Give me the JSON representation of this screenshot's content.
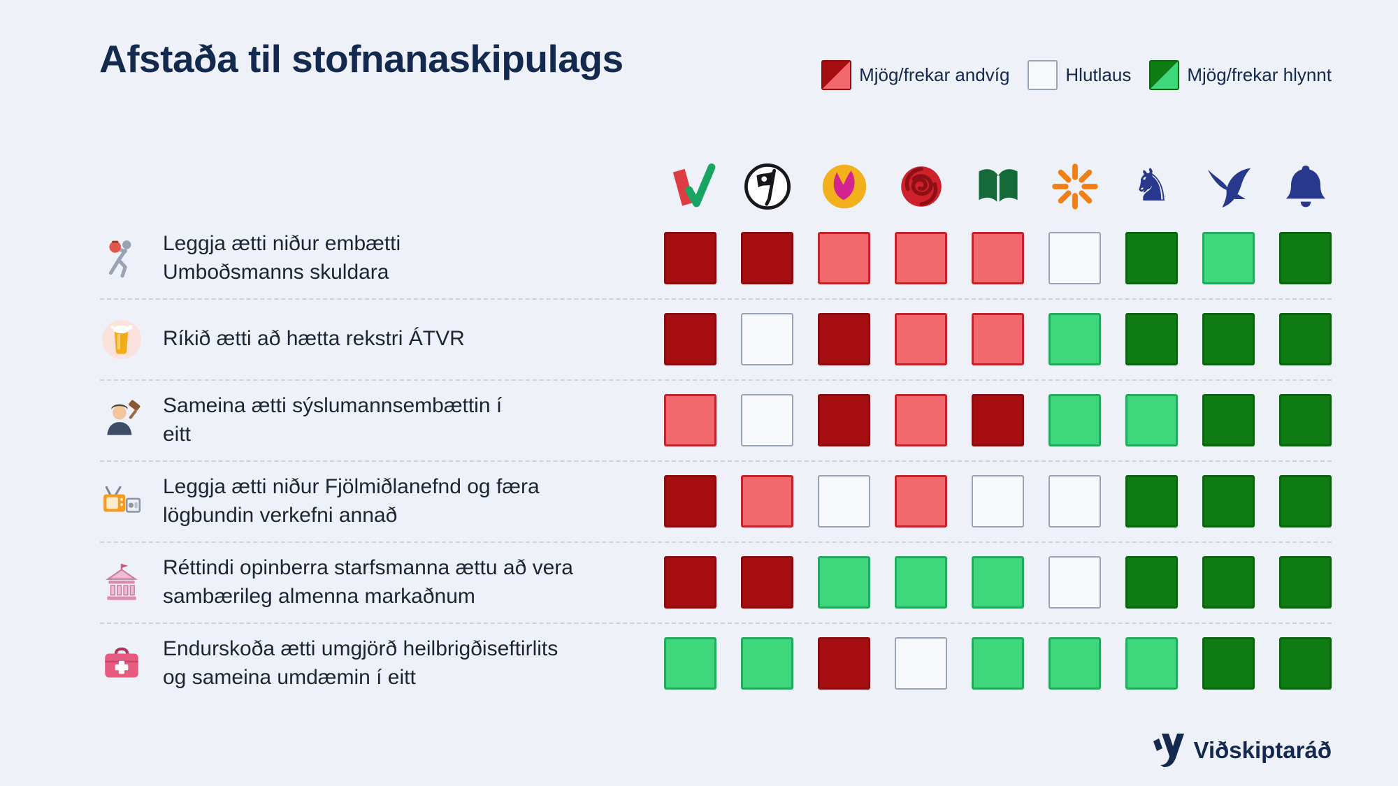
{
  "title": "Afstaða til stofnanaskipulags",
  "legend": {
    "items": [
      {
        "label": "Mjög/frekar andvíg",
        "swatch": "red",
        "name": "against-swatch"
      },
      {
        "label": "Hlutlaus",
        "swatch": "neutral",
        "name": "neutral-swatch"
      },
      {
        "label": "Mjög/frekar hlynnt",
        "swatch": "green",
        "name": "for-swatch"
      }
    ]
  },
  "footer": {
    "brand": "Viðskiptaráð"
  },
  "colors": {
    "bg": "#eef1f8",
    "navy": "#14294e",
    "text": "#1b2534",
    "logo-navy": "#28388c",
    "dashed": "#ccd3e0",
    "strongly-against": "#a60e12",
    "strongly-against-border": "#8c0b0e",
    "somewhat-against": "#f1686d",
    "somewhat-against-border": "#c2242b",
    "neutral-fill": "#f6f8fc",
    "neutral-border": "#97a3b6",
    "somewhat-for": "#3fd77c",
    "somewhat-for-border": "#22aa5e",
    "strongly-for": "#0e7b13",
    "strongly-for-border": "#0a6410"
  },
  "chart_data": {
    "type": "heatmap",
    "title": "Afstaða til stofnanaskipulags",
    "legend": [
      "Mjög/frekar andvíg",
      "Hlutlaus",
      "Mjög/frekar hlynnt"
    ],
    "legend_position": "top-right",
    "scale": {
      "strongly_against": "#a60e12",
      "somewhat_against": "#f1686d",
      "neutral": "#f6f8fc",
      "somewhat_for": "#3fd77c",
      "strongly_for": "#0e7b13"
    },
    "columns": [
      "flag-check-logo",
      "pirate-flag-logo",
      "sun-bird-logo",
      "rose-logo",
      "open-book-logo",
      "starburst-logo",
      "rearing-horse-logo",
      "falcon-logo",
      "bell-logo"
    ],
    "rows": [
      {
        "icon": "running-debtor-icon",
        "label": "Leggja ætti niður embætti\nUmboðsmanns skuldara",
        "values": [
          "strongly_against",
          "strongly_against",
          "somewhat_against",
          "somewhat_against",
          "somewhat_against",
          "neutral",
          "strongly_for",
          "somewhat_for",
          "strongly_for"
        ]
      },
      {
        "icon": "beer-glass-icon",
        "label": "Ríkið ætti að hætta rekstri ÁTVR",
        "values": [
          "strongly_against",
          "neutral",
          "strongly_against",
          "somewhat_against",
          "somewhat_against",
          "somewhat_for",
          "strongly_for",
          "strongly_for",
          "strongly_for"
        ]
      },
      {
        "icon": "auctioneer-gavel-icon",
        "label": "Sameina ætti sýslumannsembættin í\neitt",
        "values": [
          "somewhat_against",
          "neutral",
          "strongly_against",
          "somewhat_against",
          "strongly_against",
          "somewhat_for",
          "somewhat_for",
          "strongly_for",
          "strongly_for"
        ]
      },
      {
        "icon": "radio-tv-icon",
        "label": "Leggja ætti niður Fjölmiðlanefnd og færa\nlögbundin verkefni annað",
        "values": [
          "strongly_against",
          "somewhat_against",
          "neutral",
          "somewhat_against",
          "neutral",
          "neutral",
          "strongly_for",
          "strongly_for",
          "strongly_for"
        ]
      },
      {
        "icon": "government-building-icon",
        "label": "Réttindi opinberra starfsmanna ættu að vera\nsambærileg almenna markaðnum",
        "values": [
          "strongly_against",
          "strongly_against",
          "somewhat_for",
          "somewhat_for",
          "somewhat_for",
          "neutral",
          "strongly_for",
          "strongly_for",
          "strongly_for"
        ]
      },
      {
        "icon": "first-aid-bag-icon",
        "label": "Endurskoða ætti umgjörð heilbrigðiseftirlits\nog sameina umdæmin í eitt",
        "values": [
          "somewhat_for",
          "somewhat_for",
          "strongly_against",
          "neutral",
          "somewhat_for",
          "somewhat_for",
          "somewhat_for",
          "strongly_for",
          "strongly_for"
        ]
      }
    ]
  }
}
